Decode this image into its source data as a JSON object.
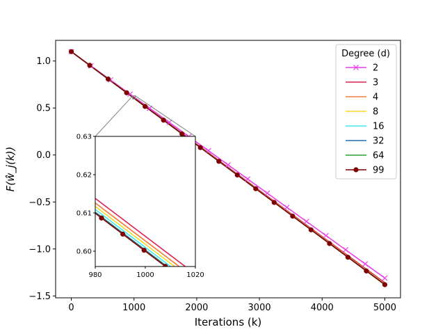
{
  "chart_data": {
    "type": "line",
    "xlabel": "Iterations (k)",
    "ylabel": "F(ŵ_j(k))",
    "xlim": [
      -250,
      5250
    ],
    "ylim": [
      -1.52,
      1.22
    ],
    "xticks": [
      0,
      1000,
      2000,
      3000,
      4000,
      5000
    ],
    "yticks": [
      -1.5,
      -1.0,
      -0.5,
      0.0,
      0.5,
      1.0
    ],
    "ytick_labels": [
      "−1.5",
      "−1.0",
      "−0.5",
      "0.0",
      "0.5",
      "1.0"
    ],
    "legend": {
      "title": "Degree (d)",
      "placement": "top-right"
    },
    "series": [
      {
        "name": "2",
        "color": "#e83de8",
        "marker": "x",
        "x": [
          0,
          5000
        ],
        "y": [
          1.1,
          -1.31
        ]
      },
      {
        "name": "3",
        "color": "#dc2050",
        "marker": "none",
        "x": [
          0,
          5000
        ],
        "y": [
          1.1,
          -1.36
        ]
      },
      {
        "name": "4",
        "color": "#f27e3b",
        "marker": "none",
        "x": [
          0,
          5000
        ],
        "y": [
          1.1,
          -1.37
        ]
      },
      {
        "name": "8",
        "color": "#f2d92c",
        "marker": "none",
        "x": [
          0,
          5000
        ],
        "y": [
          1.1,
          -1.375
        ]
      },
      {
        "name": "16",
        "color": "#3ee8f2",
        "marker": "none",
        "x": [
          0,
          5000
        ],
        "y": [
          1.1,
          -1.378
        ]
      },
      {
        "name": "32",
        "color": "#1f6fb4",
        "marker": "none",
        "x": [
          0,
          5000
        ],
        "y": [
          1.1,
          -1.379
        ]
      },
      {
        "name": "64",
        "color": "#2ca02c",
        "marker": "none",
        "x": [
          0,
          5000
        ],
        "y": [
          1.1,
          -1.379
        ]
      },
      {
        "name": "99",
        "color": "#7f0000",
        "marker": "circle",
        "x": [
          0,
          5000
        ],
        "y": [
          1.1,
          -1.38
        ]
      }
    ],
    "inset": {
      "xlim": [
        980,
        1020
      ],
      "ylim": [
        0.596,
        0.63
      ],
      "xticks": [
        980,
        1000,
        1020
      ],
      "yticks": [
        0.6,
        0.61,
        0.62,
        0.63
      ],
      "ytick_labels": [
        "0.60",
        "0.61",
        "0.62",
        "0.63"
      ],
      "series": [
        {
          "name": "3",
          "y_at_980": 0.6138,
          "slope": -0.000495
        },
        {
          "name": "4",
          "y_at_980": 0.6126,
          "slope": -0.000495
        },
        {
          "name": "8",
          "y_at_980": 0.6117,
          "slope": -0.000495
        },
        {
          "name": "16",
          "y_at_980": 0.6109,
          "slope": -0.000495
        },
        {
          "name": "32",
          "y_at_980": 0.6102,
          "slope": -0.000495
        },
        {
          "name": "64",
          "y_at_980": 0.61,
          "slope": -0.000495
        },
        {
          "name": "99",
          "y_at_980": 0.6099,
          "slope": -0.000495
        }
      ]
    }
  }
}
